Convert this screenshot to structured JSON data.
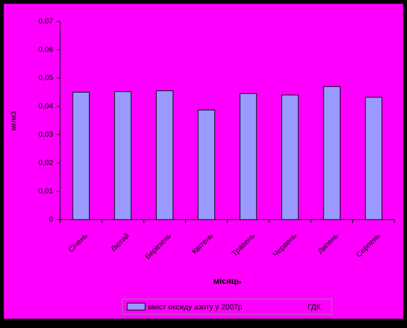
{
  "chart_data": {
    "type": "bar",
    "y_label": "мг/м3",
    "x_label": "місяць",
    "categories": [
      "Січень",
      "Лютий",
      "Березень",
      "Квітень",
      "Травень",
      "Червень",
      "Липень",
      "Серпень"
    ],
    "series": [
      {
        "name": "вміст оксиду азоту у 2007р",
        "color": "#9999ff",
        "values": [
          0.045,
          0.0452,
          0.0455,
          0.0387,
          0.0445,
          0.044,
          0.047,
          0.0432
        ]
      }
    ],
    "legend_extra": "ГДК",
    "ylim": [
      0,
      0.07
    ],
    "yticks": [
      0,
      {
        "value": 0.01,
        "label": "0,01"
      },
      {
        "value": 0.02,
        "label": "0,02"
      },
      {
        "value": 0.03,
        "label": "0,03"
      },
      {
        "value": 0.04,
        "label": "0,04"
      },
      {
        "value": 0.05,
        "label": "0,05"
      },
      {
        "value": 0.06,
        "label": "0,06"
      },
      {
        "value": 0.07,
        "label": "0,07"
      }
    ],
    "grid": false
  }
}
